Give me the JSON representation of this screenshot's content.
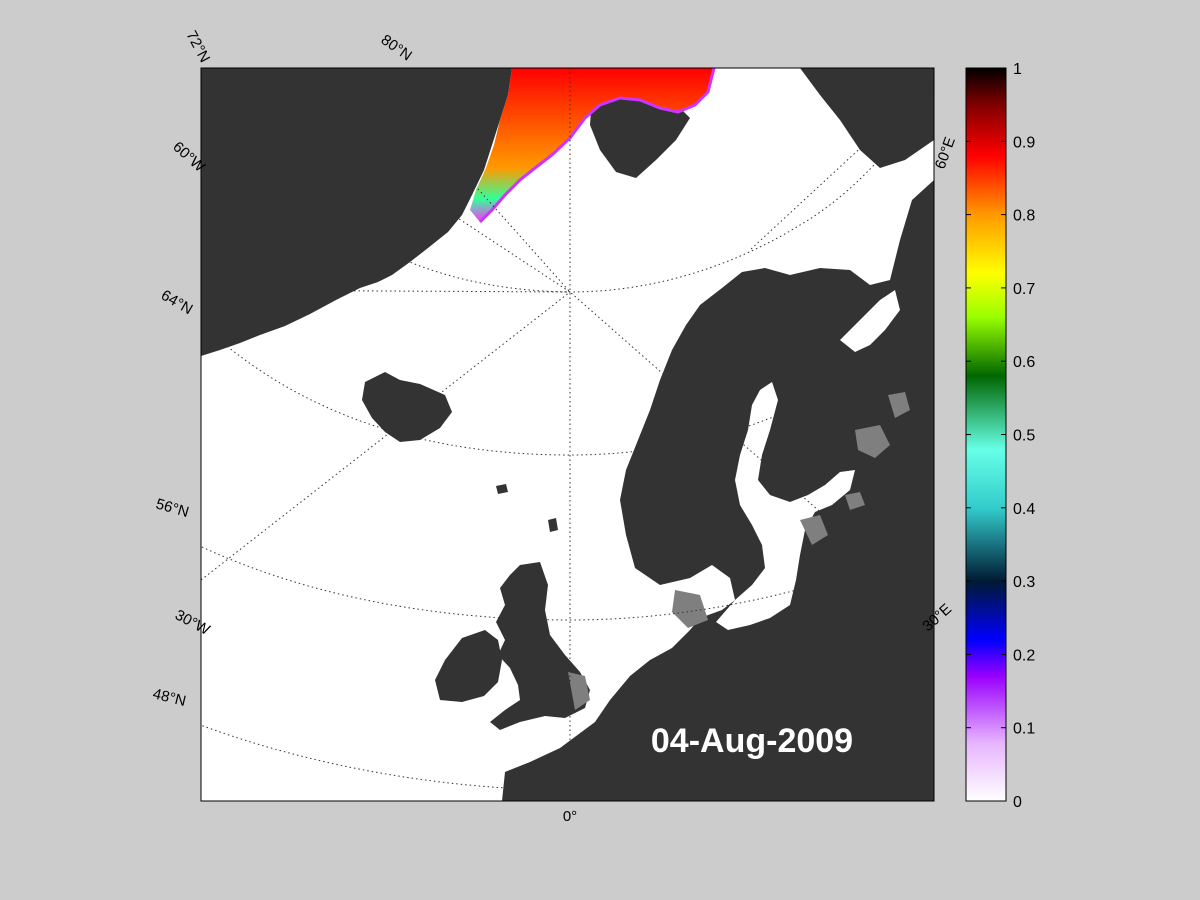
{
  "date_label": "04-Aug-2009",
  "colors": {
    "background": "#cccccc",
    "ocean": "#ffffff",
    "land": "#333333",
    "masked": "#7f7f7f"
  },
  "map": {
    "projection": "polar stereographic",
    "lat_labels": [
      "72°N",
      "64°N",
      "56°N",
      "48°N"
    ],
    "lon_labels": [
      "80°N",
      "60°W",
      "30°W",
      "0°",
      "30°E",
      "60°E"
    ]
  },
  "colorbar": {
    "ticks": [
      "0",
      "0.1",
      "0.2",
      "0.3",
      "0.4",
      "0.5",
      "0.6",
      "0.7",
      "0.8",
      "0.9",
      "1"
    ],
    "colormap_stops": [
      "#ffffff",
      "#e6b3ff",
      "#9900ff",
      "#0000ff",
      "#001a33",
      "#33cccc",
      "#66ffe6",
      "#006600",
      "#99ff00",
      "#ffff00",
      "#ff9900",
      "#ff0000",
      "#800000",
      "#000000"
    ]
  }
}
